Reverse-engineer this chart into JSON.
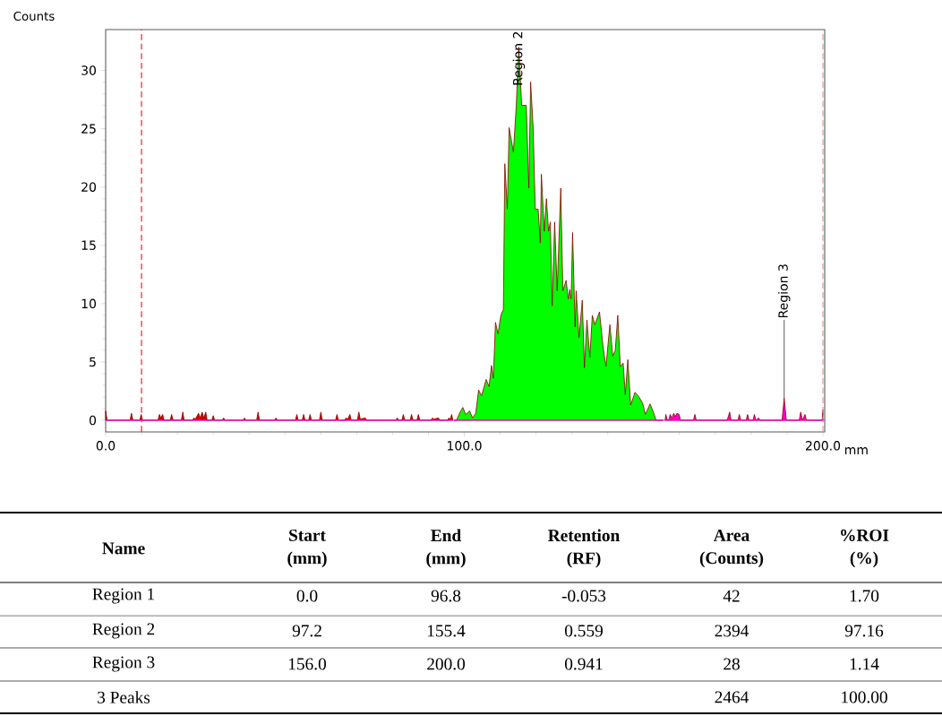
{
  "chart_data": {
    "type": "area",
    "xlabel": "mm",
    "ylabel": "Counts",
    "xlim": [
      0,
      200.5
    ],
    "ylim": [
      -1,
      33.5
    ],
    "xticks": [
      {
        "value": 0,
        "label": "0.0"
      },
      {
        "value": 100,
        "label": "100.0"
      },
      {
        "value": 200,
        "label": "200.0"
      }
    ],
    "yticks": [
      0,
      5,
      10,
      15,
      20,
      25,
      30
    ],
    "series": [
      {
        "color": "#d40000",
        "x": [
          0,
          0.4,
          6.8,
          7.2,
          7.6,
          9.5,
          9.9,
          10.3,
          14.6,
          15.0,
          15.4,
          15.9,
          16.3,
          18.0,
          18.4,
          18.8,
          21.1,
          21.5,
          21.9,
          24.2,
          24.6,
          25.0,
          25.9,
          26.4,
          26.9,
          27.4,
          27.9,
          28.3,
          29.6,
          30.0,
          30.4,
          32.5,
          32.9,
          33.3,
          38.3,
          38.7,
          39.1,
          42.1,
          42.5,
          42.9,
          47.1,
          47.5,
          47.9,
          52.9,
          53.3,
          53.7,
          54.8,
          55.2,
          55.6,
          56.6,
          57.0,
          57.4,
          59.6,
          60.0,
          60.4,
          64.1,
          64.5,
          64.9,
          66.6,
          67.0,
          67.5,
          68.1,
          68.5,
          70.2,
          70.6,
          71.0,
          72.4,
          72.8,
          80.9,
          81.3,
          81.7,
          82.6,
          83.0,
          83.4,
          84.9,
          85.3,
          85.7,
          86.8,
          87.2,
          87.6,
          90.7,
          91.1,
          91.5,
          92.8,
          93.2,
          95.3,
          95.7,
          96.1,
          96.5,
          96.8
        ],
        "values": [
          0.8,
          0,
          0,
          0.6,
          0,
          0,
          0.5,
          0,
          0,
          0.5,
          0.2,
          0.5,
          0,
          0,
          0.5,
          0,
          0,
          0.7,
          0,
          0,
          0.2,
          0.1,
          0.6,
          0.2,
          0.7,
          0.2,
          0.7,
          0,
          0,
          0.4,
          0,
          0,
          0.2,
          0,
          0,
          0.2,
          0,
          0,
          0.7,
          0,
          0,
          0.2,
          0,
          0,
          0.5,
          0,
          0,
          0.5,
          0,
          0,
          0.5,
          0,
          0,
          0.7,
          0,
          0,
          0.5,
          0,
          0,
          0.2,
          0.1,
          0.5,
          0,
          0,
          0.7,
          0.1,
          0.2,
          0,
          0,
          0.2,
          0,
          0,
          0.5,
          0,
          0,
          0.5,
          0,
          0,
          0.5,
          0,
          0,
          0.2,
          0.1,
          0.2,
          0,
          0,
          0.2,
          0.1,
          0.5,
          0
        ]
      },
      {
        "color": "#00ff00",
        "x": [
          97.2,
          97.8,
          99.0,
          99.6,
          100.4,
          101.5,
          102.3,
          103.2,
          104.0,
          104.8,
          106.1,
          106.9,
          107.6,
          108.1,
          108.7,
          109.4,
          110.2,
          110.9,
          111.3,
          112.0,
          112.5,
          113.7,
          114.5,
          115.2,
          116.0,
          117.3,
          118.0,
          118.5,
          119.2,
          119.8,
          120.6,
          121.2,
          121.5,
          122.3,
          122.9,
          123.5,
          124.0,
          124.5,
          125.2,
          125.9,
          126.9,
          127.5,
          128.4,
          129.0,
          129.4,
          129.8,
          130.2,
          130.9,
          131.2,
          132.0,
          132.9,
          133.5,
          134.2,
          135.0,
          135.7,
          136.4,
          137.7,
          138.7,
          139.5,
          140.6,
          141.4,
          142.1,
          142.8,
          143.5,
          144.3,
          144.9,
          145.6,
          146.4,
          147.6,
          148.5,
          149.7,
          150.5,
          151.8,
          152.6,
          153.5,
          155.4
        ],
        "values": [
          0,
          0,
          0.8,
          1.1,
          0.5,
          0.8,
          0.2,
          0.6,
          2.6,
          2.1,
          3.5,
          2.9,
          4.7,
          3.6,
          8.4,
          7.4,
          9.0,
          9.5,
          22.0,
          18.1,
          25.1,
          23.0,
          27.0,
          32,
          27.0,
          27.0,
          19.9,
          29.0,
          25.1,
          18.1,
          18.1,
          15.2,
          21.1,
          16.2,
          19.0,
          16.2,
          17.0,
          9.8,
          17.0,
          11.1,
          19.9,
          11.1,
          12.0,
          10.4,
          11.2,
          10.4,
          16.1,
          8.0,
          11.1,
          7.1,
          10.3,
          4.5,
          8.6,
          5.4,
          9.0,
          8.2,
          9.3,
          6.3,
          4.6,
          8.2,
          5.5,
          6.0,
          9.0,
          4.6,
          4.9,
          2.2,
          5.2,
          1.3,
          2.4,
          2.1,
          1.5,
          0.5,
          1.4,
          0.8,
          0,
          0
        ]
      },
      {
        "color": "#ff00cc",
        "x": [
          156.0,
          156.2,
          156.6,
          157.0,
          157.4,
          157.9,
          158.4,
          158.8,
          159.3,
          159.9,
          160.3,
          163.9,
          164.3,
          164.7,
          173.3,
          174.0,
          174.4,
          176.3,
          176.7,
          177.1,
          178.6,
          179.0,
          179.4,
          180.5,
          180.9,
          181.3,
          182.1,
          182.5,
          188.6,
          189.2,
          189.8,
          193.4,
          193.8,
          194.3,
          195.0,
          195.4,
          199.8,
          200.0
        ],
        "values": [
          0,
          0.5,
          0,
          0,
          0.5,
          0.2,
          0.6,
          0.3,
          0.6,
          0.5,
          0,
          0,
          0.5,
          0,
          0,
          0.7,
          0,
          0,
          0.5,
          0,
          0,
          0.5,
          0,
          0,
          0.5,
          0,
          0.2,
          0,
          0,
          1.9,
          0,
          0,
          0.7,
          0,
          0.5,
          0,
          0,
          0.9
        ]
      }
    ],
    "ref_lines": [
      {
        "axis": "x",
        "value": 10,
        "color": "#ff0000",
        "line_style": "dashed"
      },
      {
        "axis": "x",
        "value": 200,
        "color": "#e89090",
        "line_style": "dashed"
      },
      {
        "axis": "y",
        "value": 0,
        "color": "#ff00ff",
        "line_style": "solid"
      }
    ],
    "annotations": [
      {
        "text": "Region 2",
        "x": 115.2,
        "y": 32
      },
      {
        "text": "Region 3",
        "x": 189.2,
        "y": 1.9
      },
      "Name",
      "Start (mm)",
      "End (mm)",
      "Retention (RF)",
      "Area (Counts)",
      "%ROI (%)",
      "Region 1",
      "0.0",
      "96.8",
      "-0.053",
      "42",
      "1.70",
      "Region 2",
      "97.2",
      "155.4",
      "0.559",
      "2394",
      "97.16",
      "Region 3",
      "156.0",
      "200.0",
      "0.941",
      "28",
      "1.14",
      "3 Peaks",
      "2464",
      "100.00"
    ]
  }
}
